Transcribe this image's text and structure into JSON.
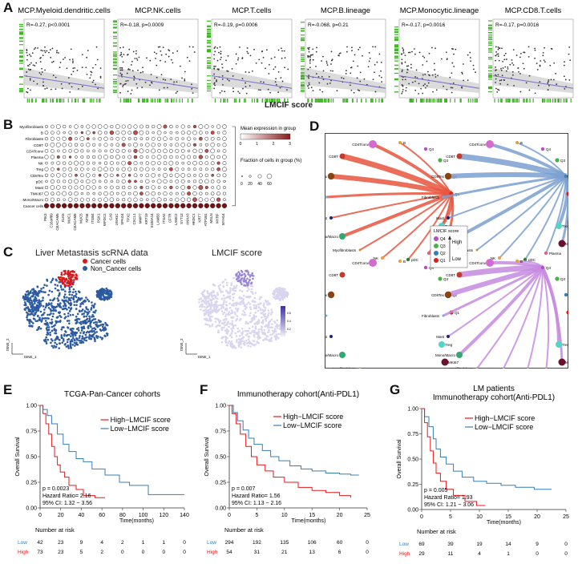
{
  "panelA": {
    "letter": "A",
    "xaxis_label": "LMCIF score",
    "plots": [
      {
        "title": "MCP.Myeloid.dendritic.cells",
        "stat": "R=-0.27, p<0.0001"
      },
      {
        "title": "MCP.NK.cells",
        "stat": "R=-0.18, p=0.0009"
      },
      {
        "title": "MCP.T.cells",
        "stat": "R=-0.19, p=0.0006"
      },
      {
        "title": "MCP.B.lineage",
        "stat": "R=-0.068, p=0.21"
      },
      {
        "title": "MCP.Monocytic.lineage",
        "stat": "R=-0.17, p=0.0016"
      },
      {
        "title": "MCP.CD8.T.cells",
        "stat": "R=-0.17, p=0.0016"
      }
    ]
  },
  "panelB": {
    "letter": "B",
    "rows": [
      "Myofibroblasts",
      "B",
      "Fibroblasts",
      "CD8T",
      "CD4Tconv",
      "Plasma",
      "NK",
      "Treg",
      "CD8Tex",
      "pDC",
      "Mast",
      "TMKI67",
      "Mono/Macro",
      "Cancer cells"
    ],
    "genes": [
      "PIK3",
      "C16orf89",
      "CEACAM6",
      "KLK6",
      "MUC1",
      "CEACAM5",
      "MUC5",
      "NT5E",
      "ITGB4",
      "PGK1",
      "WFDC2",
      "CA9",
      "USH1C",
      "SPAG4",
      "TPX2",
      "CXCL1",
      "MMP7",
      "KRT19",
      "S100A14",
      "LAMB3",
      "ITGA2",
      "CFTR",
      "LAMC2",
      "SYT13",
      "ANXA3",
      "HKDC1",
      "KRT7",
      "ATP1B1",
      "MSLN",
      "MYRF",
      "MYH14"
    ],
    "legend_expr_title": "Mean expression in group",
    "legend_expr_ticks": [
      "0",
      "1",
      "2",
      "3"
    ],
    "legend_frac_title": "Fraction of cells in group (%)",
    "legend_frac_ticks": [
      "20",
      "40",
      "60"
    ]
  },
  "panelC": {
    "letter": "C",
    "title_left": "Liver Metastasis scRNA data",
    "title_right": "LMCIF score",
    "legend": [
      {
        "label": "Cancer cells",
        "color": "#d7191c"
      },
      {
        "label": "Non_Cancer cells",
        "color": "#2c5aa0"
      }
    ],
    "axis_x": "tSNE_1",
    "axis_y": "tSNE_2",
    "scale_ticks": [
      "0.6",
      "0.4",
      "0.2"
    ]
  },
  "panelD": {
    "letter": "D",
    "legend_title": "LMCIF score",
    "legend_items": [
      {
        "label": "Q4",
        "color": "#b44fc4"
      },
      {
        "label": "Q3",
        "color": "#4daf4a"
      },
      {
        "label": "Q2",
        "color": "#377eb8"
      },
      {
        "label": "Q1",
        "color": "#e41a1c"
      }
    ],
    "legend_high": "High",
    "legend_low": "Low",
    "node_labels": [
      "CD4Tconv",
      "B",
      "Q4",
      "Q3",
      "Q2",
      "Q1",
      "CD8T",
      "CD8Tex",
      "Fibroblasts",
      "Mast",
      "Mono/Macro",
      "Myofibroblasts",
      "NK",
      "pDC",
      "Plasma",
      "Treg",
      "MKI67"
    ]
  },
  "panelE": {
    "letter": "E",
    "title": "TCGA-Pan-Cancer cohorts",
    "ylabel": "Overall Survival",
    "xlabel": "Time(months)",
    "legend_high": "High−LMCIF score",
    "legend_low": "Low−LMCIF score",
    "p": "p = 0.0023",
    "hr": "Hazard Ratio= 2.16",
    "ci": "95% CI: 1.32 − 3.56",
    "risk_title": "Number at risk",
    "xticks": [
      "0",
      "20",
      "40",
      "60",
      "80",
      "100",
      "120",
      "140"
    ],
    "yticks": [
      "0.00",
      "0.25",
      "0.50",
      "0.75",
      "1.00"
    ],
    "risk_low": [
      "42",
      "23",
      "9",
      "4",
      "2",
      "1",
      "1",
      "0"
    ],
    "risk_high": [
      "73",
      "23",
      "5",
      "2",
      "0",
      "0",
      "0",
      "0"
    ],
    "low_label": "Low",
    "high_label": "High"
  },
  "panelF": {
    "letter": "F",
    "title": "Immunotherapy cohort(Anti-PDL1)",
    "ylabel": "Overall Survival",
    "xlabel": "Time(months)",
    "legend_high": "High−LMCIF score",
    "legend_low": "Low−LMCIF score",
    "p": "p = 0.007",
    "hr": "Hazard Ratio= 1.56",
    "ci": "95% CI: 1.13 − 2.16",
    "risk_title": "Number at risk",
    "xticks": [
      "0",
      "5",
      "10",
      "15",
      "20",
      "25"
    ],
    "yticks": [
      "0.00",
      "0.25",
      "0.50",
      "0.75",
      "1.00"
    ],
    "risk_low": [
      "294",
      "192",
      "135",
      "106",
      "60",
      "0"
    ],
    "risk_high": [
      "54",
      "31",
      "21",
      "13",
      "6",
      "0"
    ],
    "low_label": "Low",
    "high_label": "High"
  },
  "panelG": {
    "letter": "G",
    "title": "LM patients",
    "subtitle": "Immunotherapy cohort(Anti-PDL1)",
    "ylabel": "Overall Survival",
    "xlabel": "Time(months)",
    "legend_high": "High−LMCIF score",
    "legend_low": "Low−LMCIF score",
    "p": "p = 0.005",
    "hr": "Hazard Ratio= 1.93",
    "ci": "95% CI: 1.21 − 3.06",
    "risk_title": "Number at risk",
    "xticks": [
      "0",
      "5",
      "10",
      "15",
      "20",
      "25"
    ],
    "yticks": [
      "0.00",
      "0.25",
      "0.50",
      "0.75",
      "1.00"
    ],
    "risk_low": [
      "69",
      "39",
      "19",
      "14",
      "9",
      "0"
    ],
    "risk_high": [
      "29",
      "11",
      "4",
      "1",
      "0",
      "0"
    ],
    "low_label": "Low",
    "high_label": "High"
  },
  "colors": {
    "high": "#e41a1c",
    "low": "#377eb8",
    "rug": "#3cb521",
    "reg": "#7b68c8"
  }
}
